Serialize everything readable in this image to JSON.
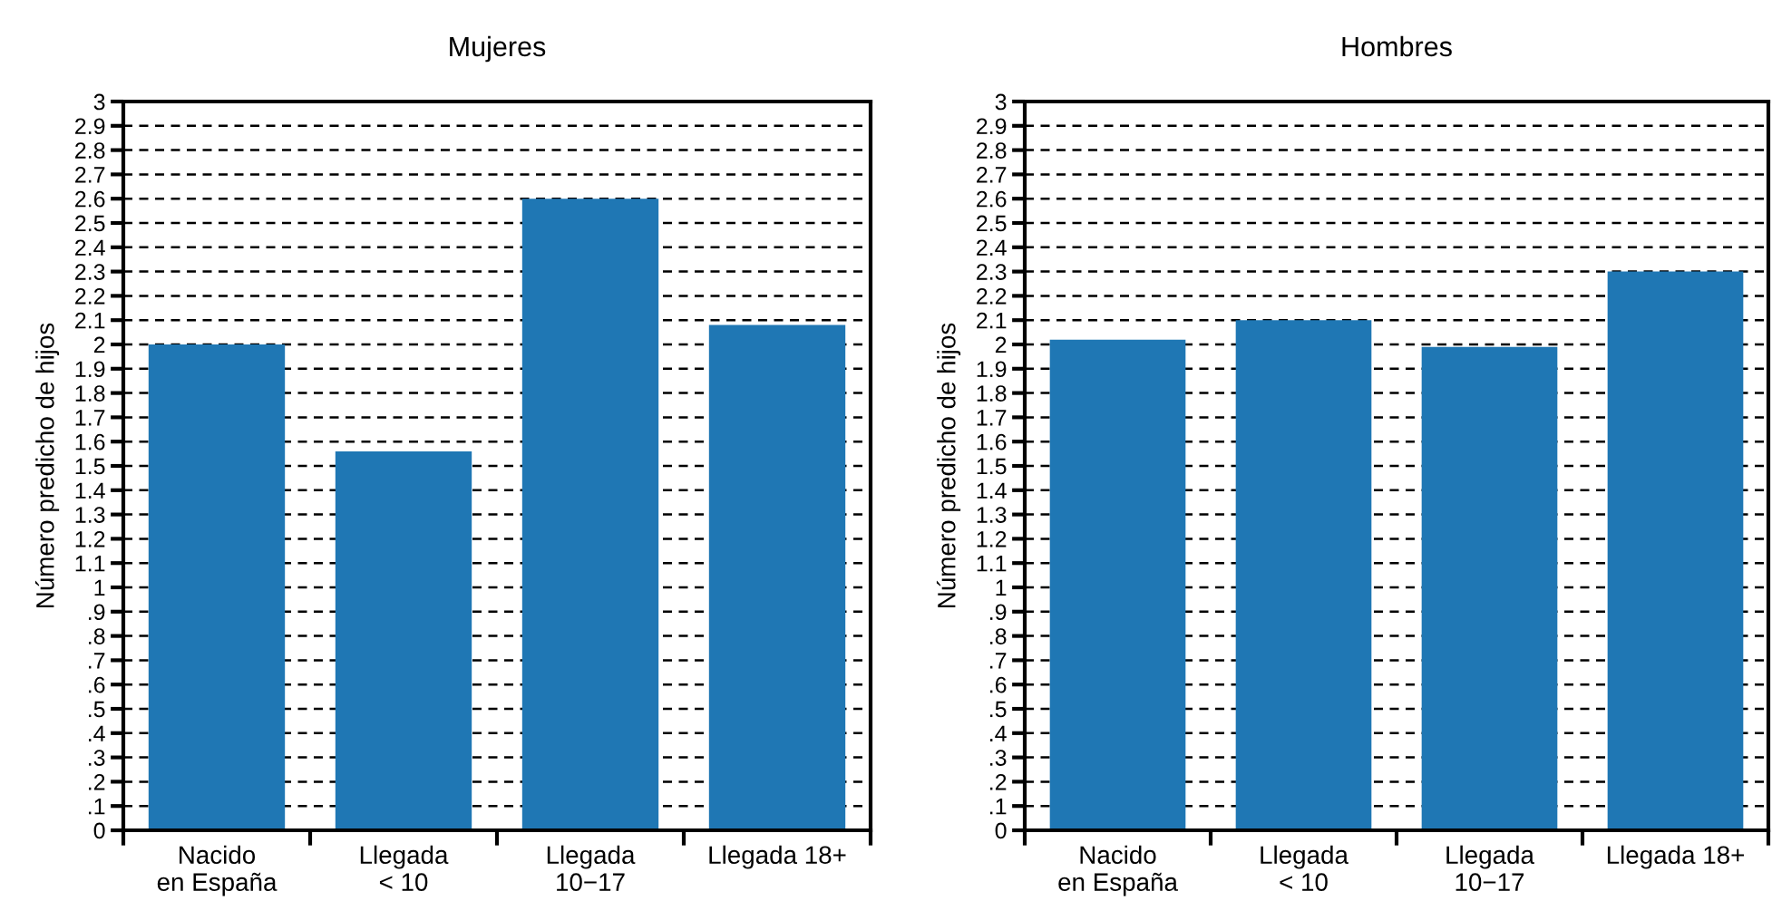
{
  "chart_data": [
    {
      "type": "bar",
      "title": "Mujeres",
      "ylabel": "Número predicho de hijos",
      "categories": [
        "Nacido\nen España",
        "Llegada\n< 10",
        "Llegada\n10−17",
        "Llegada 18+"
      ],
      "values": [
        2.0,
        1.56,
        2.6,
        2.08
      ],
      "color": "#1f77b4",
      "ylim": [
        0,
        3
      ],
      "yticks": [
        0,
        {
          "value": 0.1,
          "label": ".1"
        },
        {
          "value": 0.2,
          "label": ".2"
        },
        {
          "value": 0.3,
          "label": ".3"
        },
        {
          "value": 0.4,
          "label": ".4"
        },
        {
          "value": 0.5,
          "label": ".5"
        },
        {
          "value": 0.6,
          "label": ".6"
        },
        {
          "value": 0.7,
          "label": ".7"
        },
        {
          "value": 0.8,
          "label": ".8"
        },
        {
          "value": 0.9,
          "label": ".9"
        },
        1,
        1.1,
        1.2,
        1.3,
        1.4,
        1.5,
        1.6,
        1.7,
        1.8,
        1.9,
        2,
        2.1,
        2.2,
        2.3,
        2.4,
        2.5,
        2.6,
        2.7,
        2.8,
        2.9,
        3
      ],
      "grid": "y"
    },
    {
      "type": "bar",
      "title": "Hombres",
      "ylabel": "Número predicho de hijos",
      "categories": [
        "Nacido\nen España",
        "Llegada\n< 10",
        "Llegada\n10−17",
        "Llegada 18+"
      ],
      "values": [
        2.02,
        2.1,
        1.99,
        2.3
      ],
      "color": "#1f77b4",
      "ylim": [
        0,
        3
      ],
      "yticks": [
        0,
        {
          "value": 0.1,
          "label": ".1"
        },
        {
          "value": 0.2,
          "label": ".2"
        },
        {
          "value": 0.3,
          "label": ".3"
        },
        {
          "value": 0.4,
          "label": ".4"
        },
        {
          "value": 0.5,
          "label": ".5"
        },
        {
          "value": 0.6,
          "label": ".6"
        },
        {
          "value": 0.7,
          "label": ".7"
        },
        {
          "value": 0.8,
          "label": ".8"
        },
        {
          "value": 0.9,
          "label": ".9"
        },
        1,
        1.1,
        1.2,
        1.3,
        1.4,
        1.5,
        1.6,
        1.7,
        1.8,
        1.9,
        2,
        2.1,
        2.2,
        2.3,
        2.4,
        2.5,
        2.6,
        2.7,
        2.8,
        2.9,
        3
      ],
      "grid": "y"
    }
  ]
}
